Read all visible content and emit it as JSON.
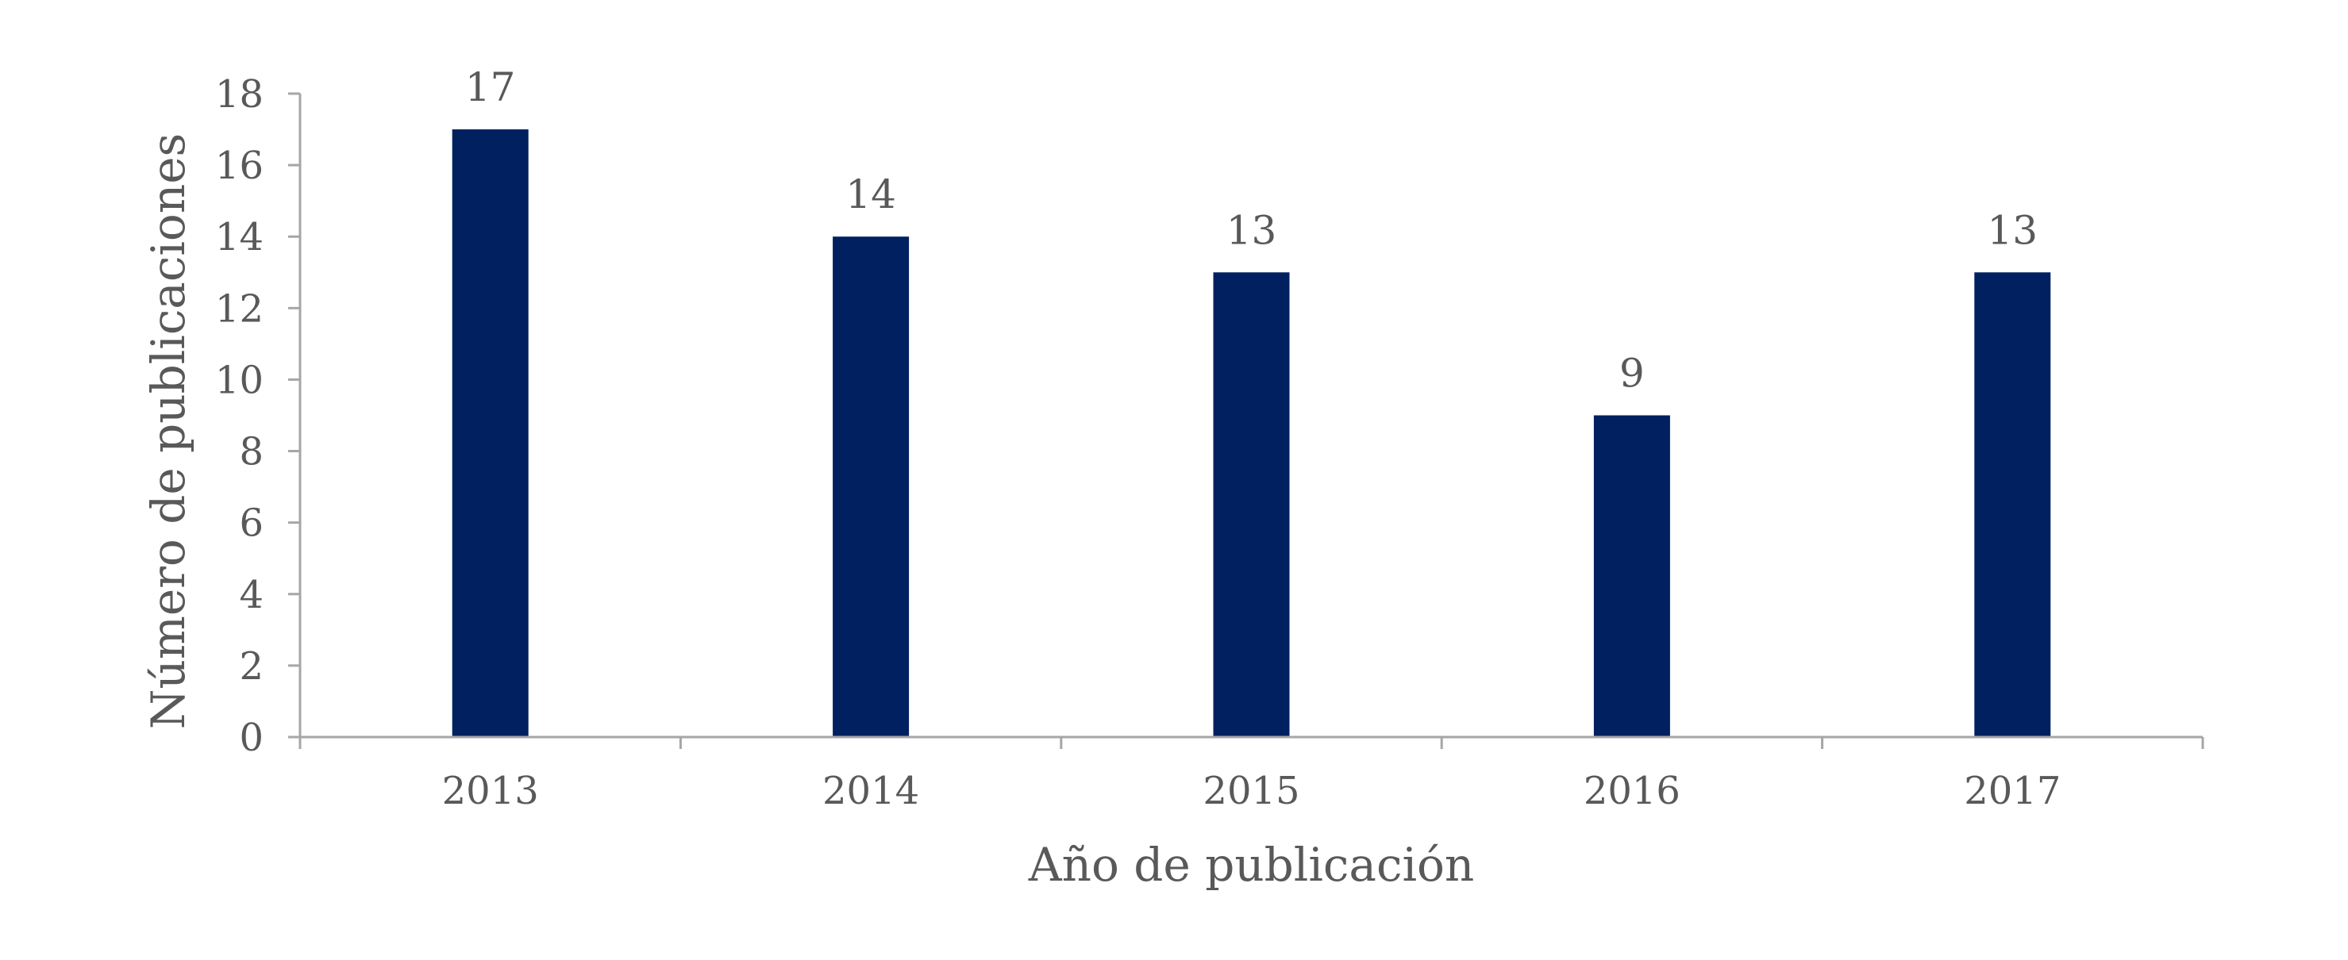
{
  "chart_data": {
    "type": "bar",
    "categories": [
      "2013",
      "2014",
      "2015",
      "2016",
      "2017"
    ],
    "values": [
      17,
      14,
      13,
      9,
      13
    ],
    "data_labels": [
      "17",
      "14",
      "13",
      "9",
      "13"
    ],
    "title": "",
    "xlabel": "Año de publicación",
    "ylabel": "Número de publicaciones",
    "ylim": [
      0,
      18
    ],
    "yticks": [
      0,
      2,
      4,
      6,
      8,
      10,
      12,
      14,
      16,
      18
    ],
    "ytick_labels": [
      "0",
      "2",
      "4",
      "6",
      "8",
      "10",
      "12",
      "14",
      "16",
      "18"
    ],
    "grid": false,
    "legend": "none",
    "bar_color": "#002060",
    "axis_color": "#a6a6a6",
    "text_color": "#595959"
  }
}
